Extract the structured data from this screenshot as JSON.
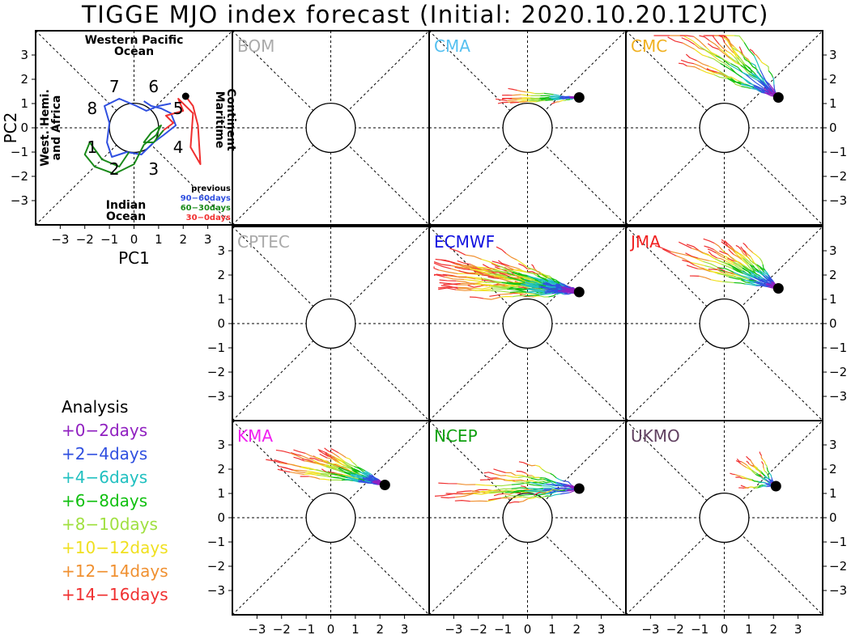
{
  "title": "TIGGE MJO index forecast (Initial: 2020.10.20.12UTC)",
  "colors": {
    "frame": "#000000",
    "analysis": "#000000",
    "previous": [
      "#3050e0",
      "#1a8a1a",
      "#f03030"
    ],
    "leads": [
      "#9020c0",
      "#3050e0",
      "#20c0c0",
      "#10c010",
      "#a0e040",
      "#f0e020",
      "#f09030",
      "#f03030"
    ]
  },
  "chart_data": {
    "type": "phase-diagram",
    "xlabel": "PC1",
    "ylabel": "PC2",
    "xlim": [
      -4,
      4
    ],
    "ylim": [
      -4,
      4
    ],
    "ticks": [
      -3,
      -2,
      -1,
      0,
      1,
      2,
      3
    ],
    "tick_labels": [
      "−3",
      "−2",
      "−1",
      "0",
      "1",
      "2",
      "3"
    ],
    "phase_numbers": [
      {
        "label": "1",
        "x": -1.7,
        "y": -0.8
      },
      {
        "label": "2",
        "x": -0.8,
        "y": -1.7
      },
      {
        "label": "3",
        "x": 0.8,
        "y": -1.7
      },
      {
        "label": "4",
        "x": 1.8,
        "y": -0.8
      },
      {
        "label": "5",
        "x": 1.8,
        "y": 0.8
      },
      {
        "label": "6",
        "x": 0.8,
        "y": 1.7
      },
      {
        "label": "7",
        "x": -0.8,
        "y": 1.7
      },
      {
        "label": "8",
        "x": -1.7,
        "y": 0.8
      }
    ],
    "regions": {
      "top": "Western Pacific\nOcean",
      "bottom": "Indian\nOcean",
      "left": "West. Hemi.\nand Africa",
      "right": "Maritime\nContinent"
    },
    "previous_legend": {
      "title": "previous",
      "entries": [
        "90−60days",
        "60−30days",
        "30−0days"
      ]
    },
    "initial_state": {
      "x": 2.1,
      "y": 1.3
    },
    "observed_history": [
      {
        "name": "90−60days",
        "points": [
          [
            0.4,
            1.1
          ],
          [
            0.7,
            0.9
          ],
          [
            1.1,
            0.8
          ],
          [
            1.5,
            0.6
          ],
          [
            1.7,
            0.1
          ],
          [
            1.2,
            -0.3
          ],
          [
            0.8,
            -0.6
          ],
          [
            0.3,
            -1.1
          ],
          [
            -0.3,
            -1.0
          ],
          [
            -0.9,
            -1.2
          ],
          [
            -1.1,
            -0.6
          ],
          [
            -1.0,
            0.2
          ],
          [
            -1.2,
            0.9
          ],
          [
            -0.6,
            1.2
          ],
          [
            0.1,
            0.9
          ],
          [
            0.5,
            0.7
          ],
          [
            1.0,
            0.9
          ],
          [
            1.5,
            1.0
          ]
        ]
      },
      {
        "name": "60−30days",
        "points": [
          [
            -0.2,
            -1.0
          ],
          [
            -0.6,
            -1.6
          ],
          [
            -1.3,
            -1.3
          ],
          [
            -1.8,
            -0.6
          ],
          [
            -2.0,
            -1.1
          ],
          [
            -1.6,
            -1.6
          ],
          [
            -0.8,
            -1.9
          ],
          [
            0.0,
            -1.5
          ],
          [
            0.4,
            -0.7
          ],
          [
            0.9,
            -0.3
          ],
          [
            1.1,
            0.1
          ],
          [
            0.7,
            -0.2
          ],
          [
            0.4,
            -0.6
          ],
          [
            0.8,
            -0.6
          ],
          [
            1.2,
            -0.1
          ]
        ]
      },
      {
        "name": "30−0days",
        "points": [
          [
            1.2,
            -0.1
          ],
          [
            1.6,
            0.2
          ],
          [
            1.3,
            0.5
          ],
          [
            2.0,
            0.7
          ],
          [
            1.8,
            1.2
          ],
          [
            2.4,
            0.6
          ],
          [
            2.3,
            -0.8
          ],
          [
            2.7,
            -1.5
          ],
          [
            2.6,
            0.1
          ],
          [
            2.4,
            0.9
          ],
          [
            2.1,
            1.3
          ]
        ]
      }
    ],
    "lead_legend": {
      "title": "Analysis",
      "entries": [
        "+0−2days",
        "+2−4days",
        "+4−6days",
        "+6−8days",
        "+8−10days",
        "+10−12days",
        "+12−14days",
        "+14−16days"
      ]
    },
    "models": [
      {
        "name": "BOM",
        "color": "#aaaaaa",
        "available": false,
        "members": 0,
        "drift": [
          0,
          0
        ],
        "spread": 0
      },
      {
        "name": "CMA",
        "color": "#55c0f0",
        "available": true,
        "members": 9,
        "drift": [
          -0.28,
          0.0
        ],
        "spread": 0.22
      },
      {
        "name": "CMC",
        "color": "#f0b020",
        "available": true,
        "members": 20,
        "drift": [
          -0.4,
          0.3
        ],
        "spread": 0.5
      },
      {
        "name": "CPTEC",
        "color": "#aaaaaa",
        "available": false,
        "members": 0,
        "drift": [
          0,
          0
        ],
        "spread": 0
      },
      {
        "name": "ECMWF",
        "color": "#1010e0",
        "available": true,
        "members": 50,
        "drift": [
          -0.5,
          0.1
        ],
        "spread": 0.45
      },
      {
        "name": "JMA",
        "color": "#f02020",
        "available": true,
        "members": 26,
        "drift": [
          -0.38,
          0.18
        ],
        "spread": 0.3
      },
      {
        "name": "KMA",
        "color": "#f020f0",
        "available": true,
        "members": 24,
        "drift": [
          -0.38,
          0.12
        ],
        "spread": 0.28
      },
      {
        "name": "NCEP",
        "color": "#10a010",
        "available": true,
        "members": 20,
        "drift": [
          -0.5,
          0.0
        ],
        "spread": 0.45
      },
      {
        "name": "UKMO",
        "color": "#604060",
        "available": true,
        "members": 12,
        "drift": [
          -0.15,
          0.1
        ],
        "spread": 0.25
      }
    ],
    "initial_states": {
      "CMA": [
        2.1,
        1.25
      ],
      "CMC": [
        2.2,
        1.25
      ],
      "ECMWF": [
        2.1,
        1.3
      ],
      "JMA": [
        2.2,
        1.45
      ],
      "KMA": [
        2.2,
        1.35
      ],
      "NCEP": [
        2.1,
        1.2
      ],
      "UKMO": [
        2.1,
        1.3
      ]
    }
  }
}
